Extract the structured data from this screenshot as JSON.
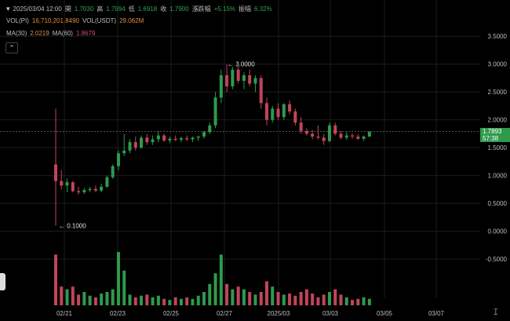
{
  "header": {
    "datetime": "2025/03/04 12:00",
    "open_label": "開",
    "open": "1.7030",
    "high_label": "高",
    "high": "1.7994",
    "low_label": "低",
    "low": "1.6918",
    "close_label": "收",
    "close": "1.7900",
    "change_label": "漲跌幅",
    "change": "+5.15%",
    "amplitude_label": "振幅",
    "amplitude": "6.32%"
  },
  "volume": {
    "vol_label": "VOL(PI)",
    "vol_value": "16,710,201.8490",
    "usdt_label": "VOL(USDT)",
    "usdt_value": "29.062M"
  },
  "ma": {
    "ma30_label": "MA(30)",
    "ma30_value": "2.0219",
    "ma60_label": "MA(60)",
    "ma60_value": "1.8679"
  },
  "collapse_icon": "chevron-up-icon",
  "price_tag": {
    "price": "1.7893",
    "countdown": "57:38"
  },
  "colors": {
    "up": "#2e9a4c",
    "down": "#c1455a",
    "bg": "#000000"
  },
  "chart_data": {
    "type": "candlestick",
    "price_axis_ticks": [
      "3.5000",
      "3.0000",
      "2.5000",
      "2.0000",
      "1.5000",
      "1.0000",
      "0.5000",
      "0.0000",
      "-0.5000"
    ],
    "price_ylim": [
      -0.85,
      3.7
    ],
    "x_ticks": [
      "02/21",
      "02/23",
      "02/25",
      "02/27",
      "2025/03",
      "03/03",
      "03/05",
      "03/07"
    ],
    "annotations": [
      {
        "text": "3.0000",
        "value": 3.0
      },
      {
        "text": "0.1000",
        "value": 0.1
      }
    ],
    "candles": [
      [
        1.2,
        2.2,
        0.1,
        0.9
      ],
      [
        0.9,
        1.1,
        0.75,
        0.82
      ],
      [
        0.82,
        0.95,
        0.7,
        0.88
      ],
      [
        0.88,
        0.9,
        0.7,
        0.72
      ],
      [
        0.72,
        0.8,
        0.66,
        0.7
      ],
      [
        0.7,
        0.78,
        0.67,
        0.74
      ],
      [
        0.74,
        0.8,
        0.7,
        0.76
      ],
      [
        0.76,
        0.82,
        0.7,
        0.73
      ],
      [
        0.73,
        0.85,
        0.7,
        0.8
      ],
      [
        0.8,
        1.0,
        0.78,
        0.97
      ],
      [
        0.97,
        1.2,
        0.94,
        1.17
      ],
      [
        1.17,
        1.45,
        1.1,
        1.4
      ],
      [
        1.4,
        1.75,
        1.35,
        1.45
      ],
      [
        1.45,
        1.65,
        1.4,
        1.6
      ],
      [
        1.6,
        1.7,
        1.45,
        1.5
      ],
      [
        1.5,
        1.72,
        1.48,
        1.68
      ],
      [
        1.68,
        1.75,
        1.55,
        1.6
      ],
      [
        1.6,
        1.72,
        1.55,
        1.65
      ],
      [
        1.65,
        1.8,
        1.6,
        1.72
      ],
      [
        1.72,
        1.75,
        1.6,
        1.63
      ],
      [
        1.63,
        1.7,
        1.58,
        1.66
      ],
      [
        1.66,
        1.72,
        1.62,
        1.64
      ],
      [
        1.64,
        1.7,
        1.6,
        1.67
      ],
      [
        1.67,
        1.72,
        1.62,
        1.65
      ],
      [
        1.65,
        1.7,
        1.6,
        1.68
      ],
      [
        1.68,
        1.72,
        1.62,
        1.7
      ],
      [
        1.7,
        1.8,
        1.66,
        1.78
      ],
      [
        1.78,
        1.95,
        1.74,
        1.9
      ],
      [
        1.9,
        2.5,
        1.85,
        2.4
      ],
      [
        2.4,
        2.9,
        2.3,
        2.8
      ],
      [
        2.8,
        3.0,
        2.5,
        2.6
      ],
      [
        2.6,
        2.95,
        2.55,
        2.9
      ],
      [
        2.9,
        2.95,
        2.65,
        2.7
      ],
      [
        2.7,
        2.85,
        2.55,
        2.8
      ],
      [
        2.8,
        2.9,
        2.6,
        2.65
      ],
      [
        2.65,
        2.8,
        2.5,
        2.75
      ],
      [
        2.75,
        2.8,
        2.2,
        2.3
      ],
      [
        2.3,
        2.4,
        1.9,
        2.0
      ],
      [
        2.0,
        2.25,
        1.95,
        2.2
      ],
      [
        2.2,
        2.3,
        2.0,
        2.05
      ],
      [
        2.05,
        2.3,
        2.0,
        2.28
      ],
      [
        2.28,
        2.35,
        2.1,
        2.15
      ],
      [
        2.15,
        2.2,
        1.9,
        1.95
      ],
      [
        1.95,
        2.05,
        1.75,
        1.8
      ],
      [
        1.8,
        1.85,
        1.72,
        1.75
      ],
      [
        1.75,
        1.82,
        1.65,
        1.7
      ],
      [
        1.7,
        1.9,
        1.65,
        1.68
      ],
      [
        1.68,
        1.75,
        1.55,
        1.62
      ],
      [
        1.62,
        1.95,
        1.6,
        1.9
      ],
      [
        1.9,
        1.95,
        1.72,
        1.75
      ],
      [
        1.75,
        1.8,
        1.65,
        1.68
      ],
      [
        1.68,
        1.78,
        1.64,
        1.72
      ],
      [
        1.72,
        1.76,
        1.66,
        1.7
      ],
      [
        1.7,
        1.74,
        1.64,
        1.66
      ],
      [
        1.66,
        1.72,
        1.62,
        1.7
      ],
      [
        1.7,
        1.79,
        1.69,
        1.79
      ]
    ],
    "volume_relative": [
      0.95,
      0.35,
      0.3,
      0.35,
      0.2,
      0.25,
      0.18,
      0.15,
      0.22,
      0.25,
      0.3,
      1.0,
      0.65,
      0.2,
      0.15,
      0.18,
      0.2,
      0.15,
      0.18,
      0.12,
      0.1,
      0.15,
      0.12,
      0.15,
      0.12,
      0.18,
      0.25,
      0.4,
      0.6,
      0.95,
      0.4,
      0.3,
      0.35,
      0.3,
      0.25,
      0.2,
      0.25,
      0.45,
      0.35,
      0.25,
      0.2,
      0.22,
      0.18,
      0.25,
      0.3,
      0.22,
      0.15,
      0.2,
      0.25,
      0.3,
      0.2,
      0.15,
      0.1,
      0.12,
      0.15,
      0.12
    ],
    "grid": true,
    "current_price": 1.7893
  }
}
